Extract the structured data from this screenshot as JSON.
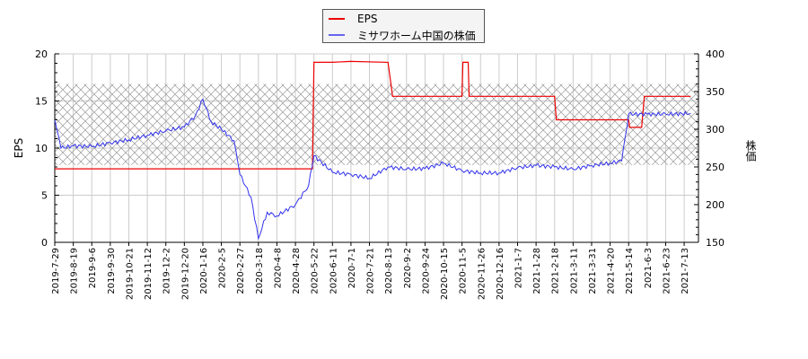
{
  "legend": {
    "items": [
      {
        "label": "EPS",
        "color": "#ee0000"
      },
      {
        "label": "ミサワホーム中国の株価",
        "color": "#3333ee"
      }
    ]
  },
  "axes": {
    "left_label": "EPS",
    "right_label": "株価",
    "left_ticks": [
      "0",
      "5",
      "10",
      "15",
      "20"
    ],
    "right_ticks": [
      "150",
      "200",
      "250",
      "300",
      "350",
      "400"
    ]
  },
  "chart_data": {
    "type": "line",
    "title": "",
    "xlabel": "",
    "ylabel": "EPS",
    "y2label": "株価",
    "ylim": [
      0,
      20
    ],
    "y2lim": [
      150,
      400
    ],
    "grid": true,
    "legend_position": "top-center",
    "x_tick_labels": [
      "2019-7-29",
      "2019-8-19",
      "2019-9-6",
      "2019-9-30",
      "2019-10-21",
      "2019-11-12",
      "2019-12-2",
      "2019-12-20",
      "2020-1-16",
      "2020-2-5",
      "2020-2-27",
      "2020-3-18",
      "2020-4-8",
      "2020-4-28",
      "2020-5-22",
      "2020-6-11",
      "2020-7-1",
      "2020-7-21",
      "2020-8-13",
      "2020-9-2",
      "2020-9-24",
      "2020-10-15",
      "2020-11-5",
      "2020-11-26",
      "2020-12-16",
      "2021-1-7",
      "2021-1-28",
      "2021-2-18",
      "2021-3-11",
      "2021-3-31",
      "2021-4-20",
      "2021-5-14",
      "2021-6-3",
      "2021-6-23",
      "2021-7-13"
    ],
    "shaded_band": {
      "ymin": 8.2,
      "ymax": 16.8,
      "pattern": "crosshatch"
    },
    "series": [
      {
        "name": "EPS",
        "axis": "left",
        "color": "#ee0000",
        "points": [
          [
            "2019-7-29",
            7.8
          ],
          [
            "2020-5-20",
            7.8
          ],
          [
            "2020-5-22",
            19.1
          ],
          [
            "2020-6-11",
            19.1
          ],
          [
            "2020-7-1",
            19.2
          ],
          [
            "2020-8-13",
            19.1
          ],
          [
            "2020-8-18",
            15.5
          ],
          [
            "2020-11-5",
            15.5
          ],
          [
            "2020-11-6",
            19.1
          ],
          [
            "2020-11-12",
            19.1
          ],
          [
            "2020-11-13",
            15.5
          ],
          [
            "2021-2-18",
            15.5
          ],
          [
            "2021-2-20",
            13.0
          ],
          [
            "2021-3-11",
            13.0
          ],
          [
            "2021-5-14",
            13.0
          ],
          [
            "2021-5-15",
            12.2
          ],
          [
            "2021-5-28",
            12.2
          ],
          [
            "2021-5-31",
            15.5
          ],
          [
            "2021-7-20",
            15.5
          ]
        ]
      },
      {
        "name": "ミサワホーム中国の株価",
        "axis": "right",
        "color": "#3333ee",
        "points": [
          [
            "2019-7-29",
            312
          ],
          [
            "2019-8-5",
            275
          ],
          [
            "2019-8-19",
            278
          ],
          [
            "2019-9-6",
            277
          ],
          [
            "2019-9-30",
            282
          ],
          [
            "2019-10-21",
            286
          ],
          [
            "2019-11-12",
            292
          ],
          [
            "2019-12-2",
            298
          ],
          [
            "2019-12-20",
            303
          ],
          [
            "2020-1-5",
            318
          ],
          [
            "2020-1-16",
            340
          ],
          [
            "2020-1-25",
            310
          ],
          [
            "2020-2-5",
            300
          ],
          [
            "2020-2-20",
            285
          ],
          [
            "2020-2-27",
            240
          ],
          [
            "2020-3-10",
            210
          ],
          [
            "2020-3-18",
            155
          ],
          [
            "2020-3-28",
            190
          ],
          [
            "2020-4-8",
            185
          ],
          [
            "2020-4-28",
            200
          ],
          [
            "2020-5-15",
            225
          ],
          [
            "2020-5-22",
            265
          ],
          [
            "2020-6-11",
            243
          ],
          [
            "2020-7-1",
            240
          ],
          [
            "2020-7-21",
            235
          ],
          [
            "2020-8-13",
            250
          ],
          [
            "2020-9-2",
            247
          ],
          [
            "2020-9-24",
            248
          ],
          [
            "2020-10-15",
            255
          ],
          [
            "2020-11-5",
            245
          ],
          [
            "2020-11-26",
            242
          ],
          [
            "2020-12-16",
            242
          ],
          [
            "2021-1-7",
            249
          ],
          [
            "2021-1-28",
            252
          ],
          [
            "2021-2-18",
            250
          ],
          [
            "2021-3-11",
            247
          ],
          [
            "2021-3-31",
            252
          ],
          [
            "2021-4-20",
            255
          ],
          [
            "2021-5-5",
            258
          ],
          [
            "2021-5-14",
            320
          ],
          [
            "2021-6-3",
            320
          ],
          [
            "2021-6-23",
            320
          ],
          [
            "2021-7-20",
            321
          ]
        ]
      }
    ]
  }
}
